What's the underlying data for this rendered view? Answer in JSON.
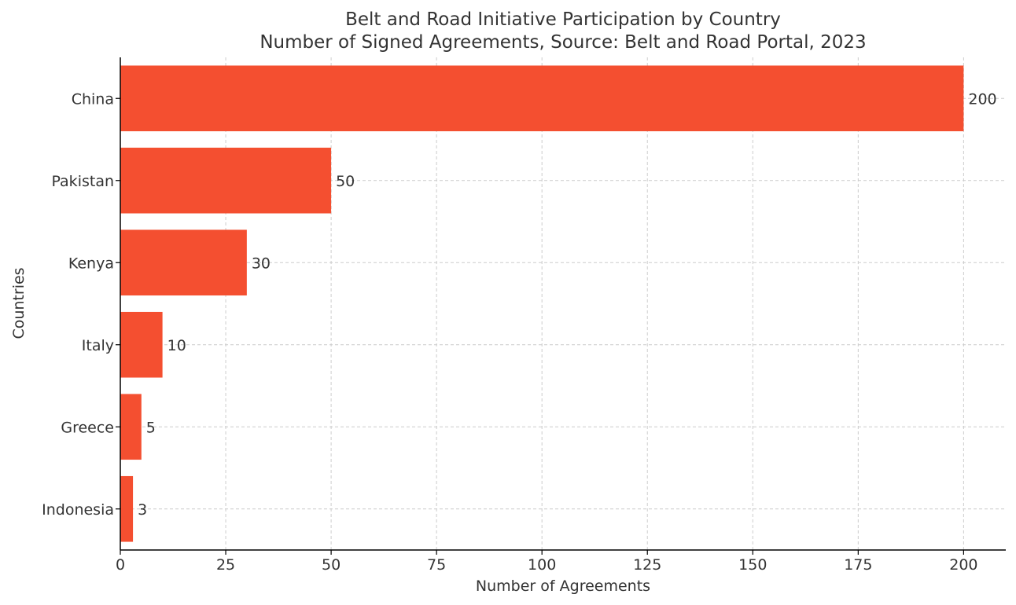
{
  "chart_data": {
    "type": "bar",
    "orientation": "horizontal",
    "title": "Belt and Road Initiative Participation by Country",
    "subtitle": "Number of Signed Agreements, Source: Belt and Road Portal, 2023",
    "xlabel": "Number of Agreements",
    "ylabel": "Countries",
    "categories": [
      "China",
      "Pakistan",
      "Kenya",
      "Italy",
      "Greece",
      "Indonesia"
    ],
    "values": [
      200,
      50,
      30,
      10,
      5,
      3
    ],
    "data_labels": [
      "200",
      "50",
      "30",
      "10",
      "5",
      "3"
    ],
    "xlim": [
      0,
      210
    ],
    "xticks": [
      0,
      25,
      50,
      75,
      100,
      125,
      150,
      175,
      200
    ],
    "xtick_labels": [
      "0",
      "25",
      "50",
      "75",
      "100",
      "125",
      "150",
      "175",
      "200"
    ],
    "grid": true,
    "bar_color": "#f44f30",
    "text_color": "#333333"
  }
}
